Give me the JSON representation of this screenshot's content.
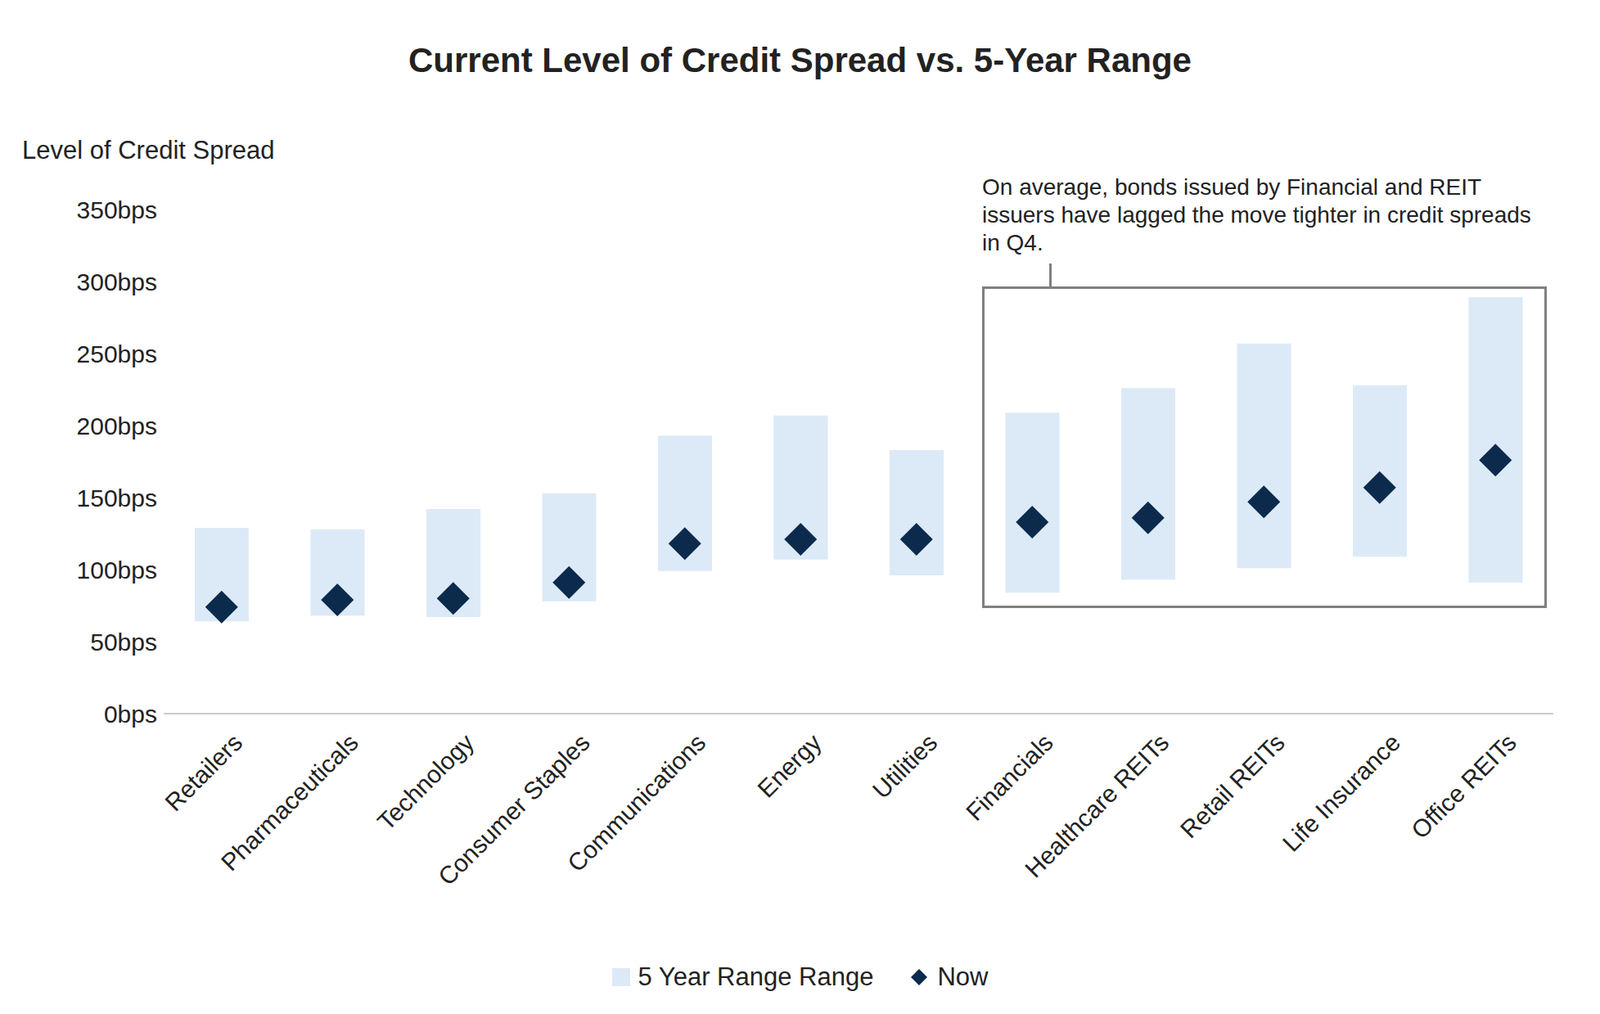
{
  "chart_data": {
    "type": "floating_bar",
    "title": "Current Level of Credit Spread vs. 5-Year Range",
    "y_label": "Level of Credit Spread",
    "annotation": "On average, bonds issued by Financial and REIT issuers have lagged the move tighter in credit spreads in Q4.",
    "categories": [
      "Retailers",
      "Pharmaceuticals",
      "Technology",
      "Consumer Staples",
      "Communications",
      "Energy",
      "Utilities",
      "Financials",
      "Healthcare REITs",
      "Retail REITs",
      "Life Insurance",
      "Office REITs"
    ],
    "series": [
      {
        "name": "5 Year Range Range",
        "type": "range_bar",
        "color": "#dceaf7",
        "low": [
          64,
          68,
          67,
          78,
          99,
          107,
          96,
          84,
          93,
          101,
          109,
          91
        ],
        "high": [
          129,
          128,
          142,
          153,
          193,
          207,
          183,
          209,
          226,
          257,
          228,
          289
        ]
      },
      {
        "name": "Now",
        "type": "scatter",
        "marker": "diamond",
        "color": "#0b2a4c",
        "values": [
          74,
          79,
          80,
          91,
          118,
          121,
          121,
          133,
          136,
          147,
          157,
          176
        ]
      }
    ],
    "ylim": [
      0,
      350
    ],
    "yticks": [
      {
        "value": 0,
        "label": "0bps"
      },
      {
        "value": 50,
        "label": "50bps"
      },
      {
        "value": 100,
        "label": "100bps"
      },
      {
        "value": 150,
        "label": "150bps"
      },
      {
        "value": 200,
        "label": "200bps"
      },
      {
        "value": 250,
        "label": "250bps"
      },
      {
        "value": 300,
        "label": "300bps"
      },
      {
        "value": 350,
        "label": "350bps"
      }
    ],
    "grid": false,
    "legend": "bottom"
  }
}
